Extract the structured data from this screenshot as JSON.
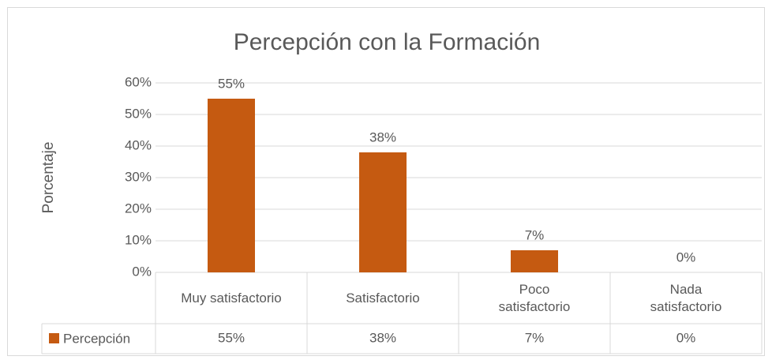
{
  "chart_data": {
    "type": "bar",
    "title": "Percepción con la Formación",
    "y_label": "Porcentaje",
    "categories": [
      "Muy satisfactorio",
      "Satisfactorio",
      "Poco satisfactorio",
      "Nada satisfactorio"
    ],
    "series": [
      {
        "name": "Percepción",
        "color": "#c55a11",
        "values": [
          55,
          38,
          7,
          0
        ],
        "value_labels": [
          "55%",
          "38%",
          "7%",
          "0%"
        ]
      }
    ],
    "ylim": [
      0,
      60
    ],
    "yticks": [
      {
        "value": 0,
        "label": "0%"
      },
      {
        "value": 10,
        "label": "10%"
      },
      {
        "value": 20,
        "label": "20%"
      },
      {
        "value": 30,
        "label": "30%"
      },
      {
        "value": 40,
        "label": "40%"
      },
      {
        "value": 50,
        "label": "50%"
      },
      {
        "value": 60,
        "label": "60%"
      }
    ],
    "grid": true
  }
}
